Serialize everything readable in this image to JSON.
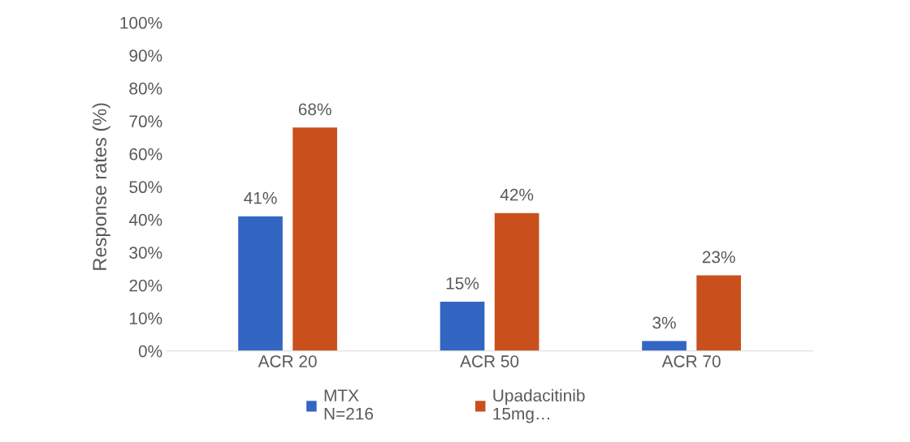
{
  "chart_data": {
    "type": "bar",
    "ylabel": "Response rates (%)",
    "categories": [
      "ACR 20",
      "ACR 50",
      "ACR 70"
    ],
    "series": [
      {
        "name": "MTX\nN=216",
        "color": "#3366c2",
        "values": [
          41,
          15,
          3
        ],
        "value_labels": [
          "41%",
          "15%",
          "3%"
        ]
      },
      {
        "name": "Upadacitinib\n15mg…",
        "color": "#c9501c",
        "values": [
          68,
          42,
          23
        ],
        "value_labels": [
          "68%",
          "42%",
          "23%"
        ]
      }
    ],
    "ylim": [
      0,
      100
    ],
    "yticks": [
      {
        "value": 0,
        "label": "0%"
      },
      {
        "value": 10,
        "label": "10%"
      },
      {
        "value": 20,
        "label": "20%"
      },
      {
        "value": 30,
        "label": "30%"
      },
      {
        "value": 40,
        "label": "40%"
      },
      {
        "value": 50,
        "label": "50%"
      },
      {
        "value": 60,
        "label": "60%"
      },
      {
        "value": 70,
        "label": "70%"
      },
      {
        "value": 80,
        "label": "80%"
      },
      {
        "value": 90,
        "label": "90%"
      },
      {
        "value": 100,
        "label": "100%"
      }
    ],
    "grid": false,
    "legend": "bottom"
  }
}
